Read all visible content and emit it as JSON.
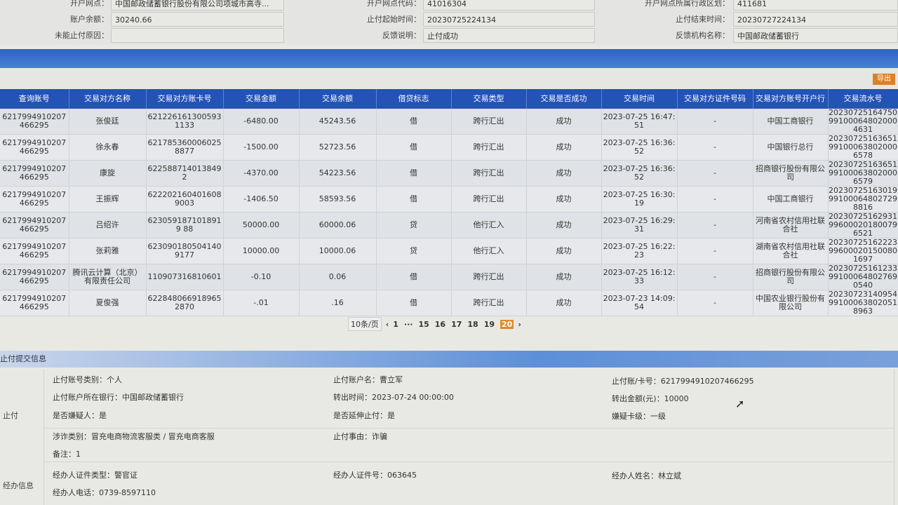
{
  "info": {
    "rows": [
      [
        {
          "label": "开户网点：",
          "value": "中国邮政储蓄银行股份有限公司项城市高寺..."
        },
        {
          "label": "开户网点代码：",
          "value": "41016304"
        },
        {
          "label": "开户网点所属行政区划：",
          "value": "411681"
        }
      ],
      [
        {
          "label": "账户余额：",
          "value": "30240.66"
        },
        {
          "label": "止付起始时间：",
          "value": "20230725224134"
        },
        {
          "label": "止付结束时间：",
          "value": "20230727224134"
        }
      ],
      [
        {
          "label": "未能止付原因：",
          "value": ""
        },
        {
          "label": "反馈说明：",
          "value": "止付成功"
        },
        {
          "label": "反馈机构名称：",
          "value": "中国邮政储蓄银行"
        }
      ]
    ]
  },
  "toolbar": {
    "export_label": "导出"
  },
  "table": {
    "headers": [
      "查询账号",
      "交易对方名称",
      "交易对方账卡号",
      "交易金额",
      "交易余额",
      "借贷标志",
      "交易类型",
      "交易是否成功",
      "交易时间",
      "交易对方证件号码",
      "交易对方账号开户行",
      "交易流水号"
    ],
    "rows": [
      [
        "6217994910207466295",
        "张俊廷",
        "6212261613005931133",
        "-6480.00",
        "45243.56",
        "借",
        "跨行汇出",
        "成功",
        "2023-07-25 16:47:51",
        "-",
        "中国工商银行",
        "20230725164750991000648020004631"
      ],
      [
        "6217994910207466295",
        "徐永春",
        "6217853600060258877",
        "-1500.00",
        "52723.56",
        "借",
        "跨行汇出",
        "成功",
        "2023-07-25 16:36:52",
        "-",
        "中国银行总行",
        "20230725163651991000638020006578"
      ],
      [
        "6217994910207466295",
        "康旋",
        "622588714013849 2",
        "-4370.00",
        "54223.56",
        "借",
        "跨行汇出",
        "成功",
        "2023-07-25 16:36:52",
        "-",
        "招商银行股份有限公司",
        "20230725163651991000638020006579"
      ],
      [
        "6217994910207466295",
        "王振辉",
        "6222021604016089003",
        "-1406.50",
        "58593.56",
        "借",
        "跨行汇出",
        "成功",
        "2023-07-25 16:30:19",
        "-",
        "中国工商银行",
        "20230725163019991000648027298816"
      ],
      [
        "6217994910207466295",
        "吕绍许",
        "6230591871018919 88",
        "50000.00",
        "60000.06",
        "贷",
        "他行汇入",
        "成功",
        "2023-07-25 16:29:31",
        "-",
        "河南省农村信用社联合社",
        "2023072516293199600020180079 6521"
      ],
      [
        "6217994910207466295",
        "张莉雅",
        "6230901805041409177",
        "10000.00",
        "10000.06",
        "贷",
        "他行汇入",
        "成功",
        "2023-07-25 16:22:23",
        "-",
        "湖南省农村信用社联合社",
        "2023072516222399600020150080 1697"
      ],
      [
        "6217994910207466295",
        "腾讯云计算（北京）有限责任公司",
        "110907316810601",
        "-0.10",
        "0.06",
        "借",
        "跨行汇出",
        "成功",
        "2023-07-25 16:12:33",
        "-",
        "招商银行股份有限公司",
        "2023072516123399100064802769 0540"
      ],
      [
        "6217994910207466295",
        "夏俊强",
        "6228480669189652870",
        "-.01",
        ".16",
        "借",
        "跨行汇出",
        "成功",
        "2023-07-23 14:09:54",
        "-",
        "中国农业银行股份有限公司",
        "2023072314095499100063802051 8963"
      ]
    ]
  },
  "pager": {
    "page_size": "10条/页",
    "prev": "‹",
    "pages": [
      "1",
      "···",
      "15",
      "16",
      "17",
      "18",
      "19",
      "20"
    ],
    "current": "20",
    "next": "›"
  },
  "section": {
    "title": "止付提交信息"
  },
  "form": {
    "group1_label": "止付",
    "group2_label": "经办信息",
    "acct_type": "止付账号类别：个人",
    "acct_name": "止付账户名：曹立军",
    "acct_no": "止付账/卡号：6217994910207466295",
    "bank": "止付账户所在银行：中国邮政储蓄银行",
    "out_time": "转出时间：2023-07-24 00:00:00",
    "out_amount": "转出金额(元)：10000",
    "suspect": "是否嫌疑人：是",
    "extend": "是否延伸止付：是",
    "card_level": "嫌疑卡级：一级",
    "fraud_type": "涉诈类别：冒充电商物流客服类 / 冒充电商客服",
    "reason": "止付事由：诈骗",
    "remark": "备注：1",
    "officer_id_type": "经办人证件类型：警官证",
    "officer_id": "经办人证件号：063645",
    "officer_name": "经办人姓名：林立斌",
    "officer_phone": "经办人电话：0739-8597110"
  },
  "colors": {
    "header_blue": "#2353b5",
    "accent_orange": "#e08a2c"
  }
}
